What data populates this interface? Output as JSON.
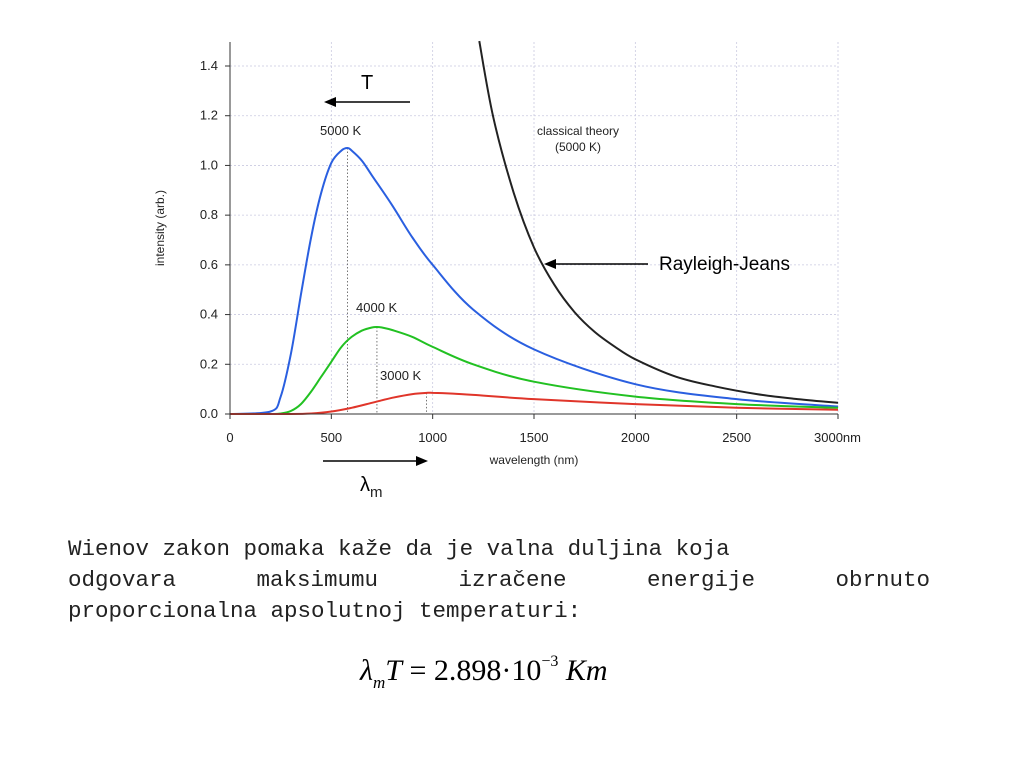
{
  "chart_data": {
    "type": "line",
    "xlabel": "wavelength (nm)",
    "ylabel": "intensity (arb.)",
    "xlim": [
      0,
      3000
    ],
    "ylim": [
      0,
      1.5
    ],
    "x_ticks": [
      0,
      500,
      1000,
      1500,
      2000,
      2500,
      3000
    ],
    "x_tick_labels": [
      "0",
      "500",
      "1000",
      "1500",
      "2000",
      "2500",
      "3000nm"
    ],
    "y_ticks": [
      0.0,
      0.2,
      0.4,
      0.6,
      0.8,
      1.0,
      1.2,
      1.4
    ],
    "y_tick_labels": [
      "0.0",
      "0.2",
      "0.4",
      "0.6",
      "0.8",
      "1.0",
      "1.2",
      "1.4"
    ],
    "grid": true,
    "series": [
      {
        "name": "5000 K",
        "color": "#2a5fe0",
        "peak": [
          580,
          1.07
        ],
        "x": [
          0,
          200,
          250,
          300,
          350,
          400,
          450,
          500,
          550,
          580,
          600,
          650,
          700,
          800,
          900,
          1000,
          1200,
          1500,
          2000,
          2500,
          3000
        ],
        "y": [
          0.0,
          0.01,
          0.07,
          0.24,
          0.48,
          0.71,
          0.89,
          1.01,
          1.06,
          1.07,
          1.06,
          1.02,
          0.96,
          0.84,
          0.71,
          0.6,
          0.42,
          0.26,
          0.12,
          0.06,
          0.03
        ]
      },
      {
        "name": "4000 K",
        "color": "#22c122",
        "peak": [
          725,
          0.35
        ],
        "x": [
          0,
          200,
          250,
          300,
          350,
          400,
          450,
          500,
          550,
          600,
          650,
          700,
          725,
          750,
          800,
          900,
          1000,
          1200,
          1500,
          2000,
          2500,
          3000
        ],
        "y": [
          0.0,
          0.0,
          0.002,
          0.012,
          0.04,
          0.09,
          0.15,
          0.21,
          0.27,
          0.31,
          0.335,
          0.348,
          0.35,
          0.348,
          0.338,
          0.31,
          0.27,
          0.2,
          0.13,
          0.07,
          0.04,
          0.025
        ]
      },
      {
        "name": "3000 K",
        "color": "#e0352a",
        "peak": [
          970,
          0.085
        ],
        "x": [
          0,
          300,
          400,
          500,
          600,
          700,
          800,
          900,
          970,
          1000,
          1100,
          1200,
          1500,
          2000,
          2500,
          3000
        ],
        "y": [
          0.0,
          0.0,
          0.002,
          0.01,
          0.025,
          0.045,
          0.065,
          0.08,
          0.085,
          0.085,
          0.082,
          0.077,
          0.06,
          0.04,
          0.025,
          0.017
        ]
      },
      {
        "name": "classical theory (5000 K)",
        "color": "#222222",
        "x": [
          1230,
          1300,
          1400,
          1500,
          1600,
          1700,
          1800,
          1900,
          2000,
          2200,
          2400,
          2600,
          2800,
          3000
        ],
        "y": [
          1.5,
          1.19,
          0.89,
          0.67,
          0.52,
          0.41,
          0.33,
          0.27,
          0.22,
          0.15,
          0.11,
          0.08,
          0.06,
          0.045
        ]
      }
    ],
    "annotations": {
      "label_5000": "5000 K",
      "label_4000": "4000 K",
      "label_3000": "3000 K",
      "classical_line1": "classical theory",
      "classical_line2": "(5000 K)",
      "rayleigh_jeans": "Rayleigh-Jeans",
      "t_arrow": "T",
      "lambda_symbol": "λ",
      "lambda_subscript": "m"
    }
  },
  "text": {
    "line1": "Wienov zakon pomaka kaže da je valna duljina koja",
    "line2_words": [
      "odgovara",
      "maksimumu",
      "izračene",
      "energije",
      "obrnuto"
    ],
    "line3": "proporcionalna apsolutnoj temperaturi:"
  },
  "formula": {
    "lambda": "λ",
    "sub": "m",
    "T": "T",
    "equals": " = 2.898·10",
    "exponent": "−3",
    "unit": "Km"
  }
}
